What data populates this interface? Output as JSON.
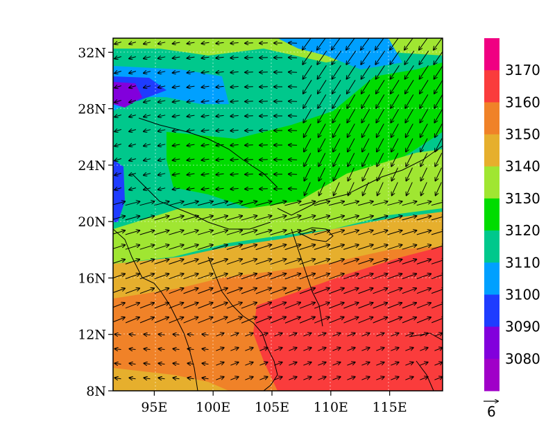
{
  "map": {
    "lat_labels": [
      "8N",
      "12N",
      "16N",
      "20N",
      "24N",
      "28N",
      "32N"
    ],
    "lon_labels": [
      "95E",
      "100E",
      "105E",
      "110E",
      "115E"
    ],
    "lat_range": [
      8,
      33
    ],
    "lon_range": [
      91.5,
      119.5
    ],
    "field": "geopotential height contours with wind vectors"
  },
  "colorbar": {
    "labels": [
      "3080",
      "3090",
      "3100",
      "3110",
      "3120",
      "3130",
      "3140",
      "3150",
      "3160",
      "3170"
    ],
    "colors": [
      "#a000c8",
      "#8200dc",
      "#1e3cff",
      "#00a0ff",
      "#00c88c",
      "#00dc00",
      "#a0e632",
      "#e6af2d",
      "#f08228",
      "#fa3c3c",
      "#f00082"
    ]
  },
  "vector_reference": {
    "label": "6"
  }
}
